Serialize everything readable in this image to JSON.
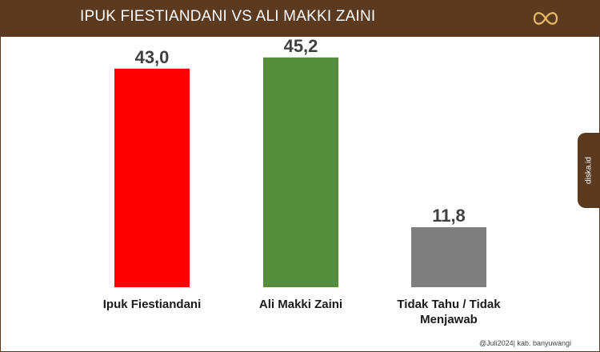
{
  "header": {
    "title": "IPUK FIESTIANDANI VS ALI MAKKI ZAINI"
  },
  "side_tab": {
    "label": "diska.id"
  },
  "footer": {
    "text": "@Juli2024| kab. banyuwangi"
  },
  "colors": {
    "header_bg": "#5b3a1f",
    "logo": "#e6b96a",
    "bar_ipuk": "#ff0000",
    "bar_ali": "#548e3c",
    "bar_tidak": "#7f7f7f",
    "value_text": "#404040",
    "category_text": "#1a1a1a"
  },
  "chart_data": {
    "type": "bar",
    "categories": [
      [
        "Ipuk Fiestiandani"
      ],
      [
        "Ali Makki Zaini"
      ],
      [
        "Tidak Tahu / Tidak",
        "Menjawab"
      ]
    ],
    "values": [
      43.0,
      45.2,
      11.8
    ],
    "value_labels": [
      "43,0",
      "45,2",
      "11,8"
    ],
    "bar_colors": [
      "#ff0000",
      "#548e3c",
      "#7f7f7f"
    ],
    "ylim": [
      0,
      48
    ]
  }
}
